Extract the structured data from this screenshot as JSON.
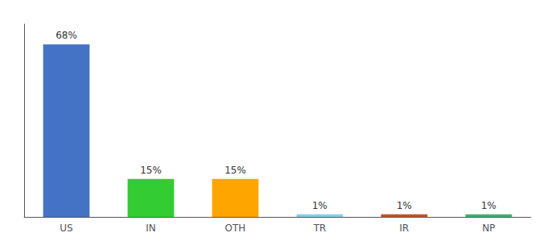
{
  "chart_data": {
    "type": "bar",
    "categories": [
      "US",
      "IN",
      "OTH",
      "TR",
      "IR",
      "NP"
    ],
    "values": [
      68,
      15,
      15,
      1,
      1,
      1
    ],
    "value_labels": [
      "68%",
      "15%",
      "15%",
      "1%",
      "1%",
      "1%"
    ],
    "colors": [
      "#4472C4",
      "#33CC33",
      "#FFA500",
      "#87CEEB",
      "#C0522A",
      "#3CB371"
    ],
    "data_labels": true,
    "ylim": [
      0,
      76
    ],
    "tick_labels": "x",
    "grid": false
  }
}
